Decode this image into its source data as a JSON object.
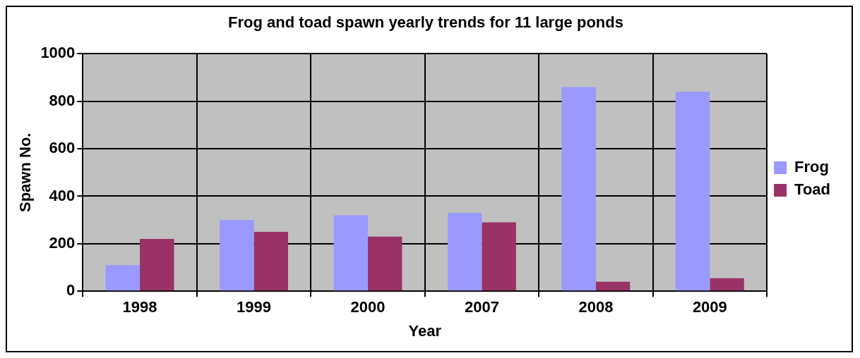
{
  "chart_data": {
    "type": "bar",
    "title": "Frog and toad spawn yearly trends for 11 large ponds",
    "xlabel": "Year",
    "ylabel": "Spawn No.",
    "categories": [
      "1998",
      "1999",
      "2000",
      "2007",
      "2008",
      "2009"
    ],
    "series": [
      {
        "name": "Frog",
        "color": "#9999ff",
        "values": [
          110,
          300,
          320,
          330,
          860,
          840
        ]
      },
      {
        "name": "Toad",
        "color": "#993366",
        "values": [
          220,
          250,
          230,
          290,
          40,
          55
        ]
      }
    ],
    "ylim": [
      0,
      1000
    ],
    "yticks": [
      0,
      200,
      400,
      600,
      800,
      1000
    ],
    "grid": true,
    "legend": "right"
  }
}
